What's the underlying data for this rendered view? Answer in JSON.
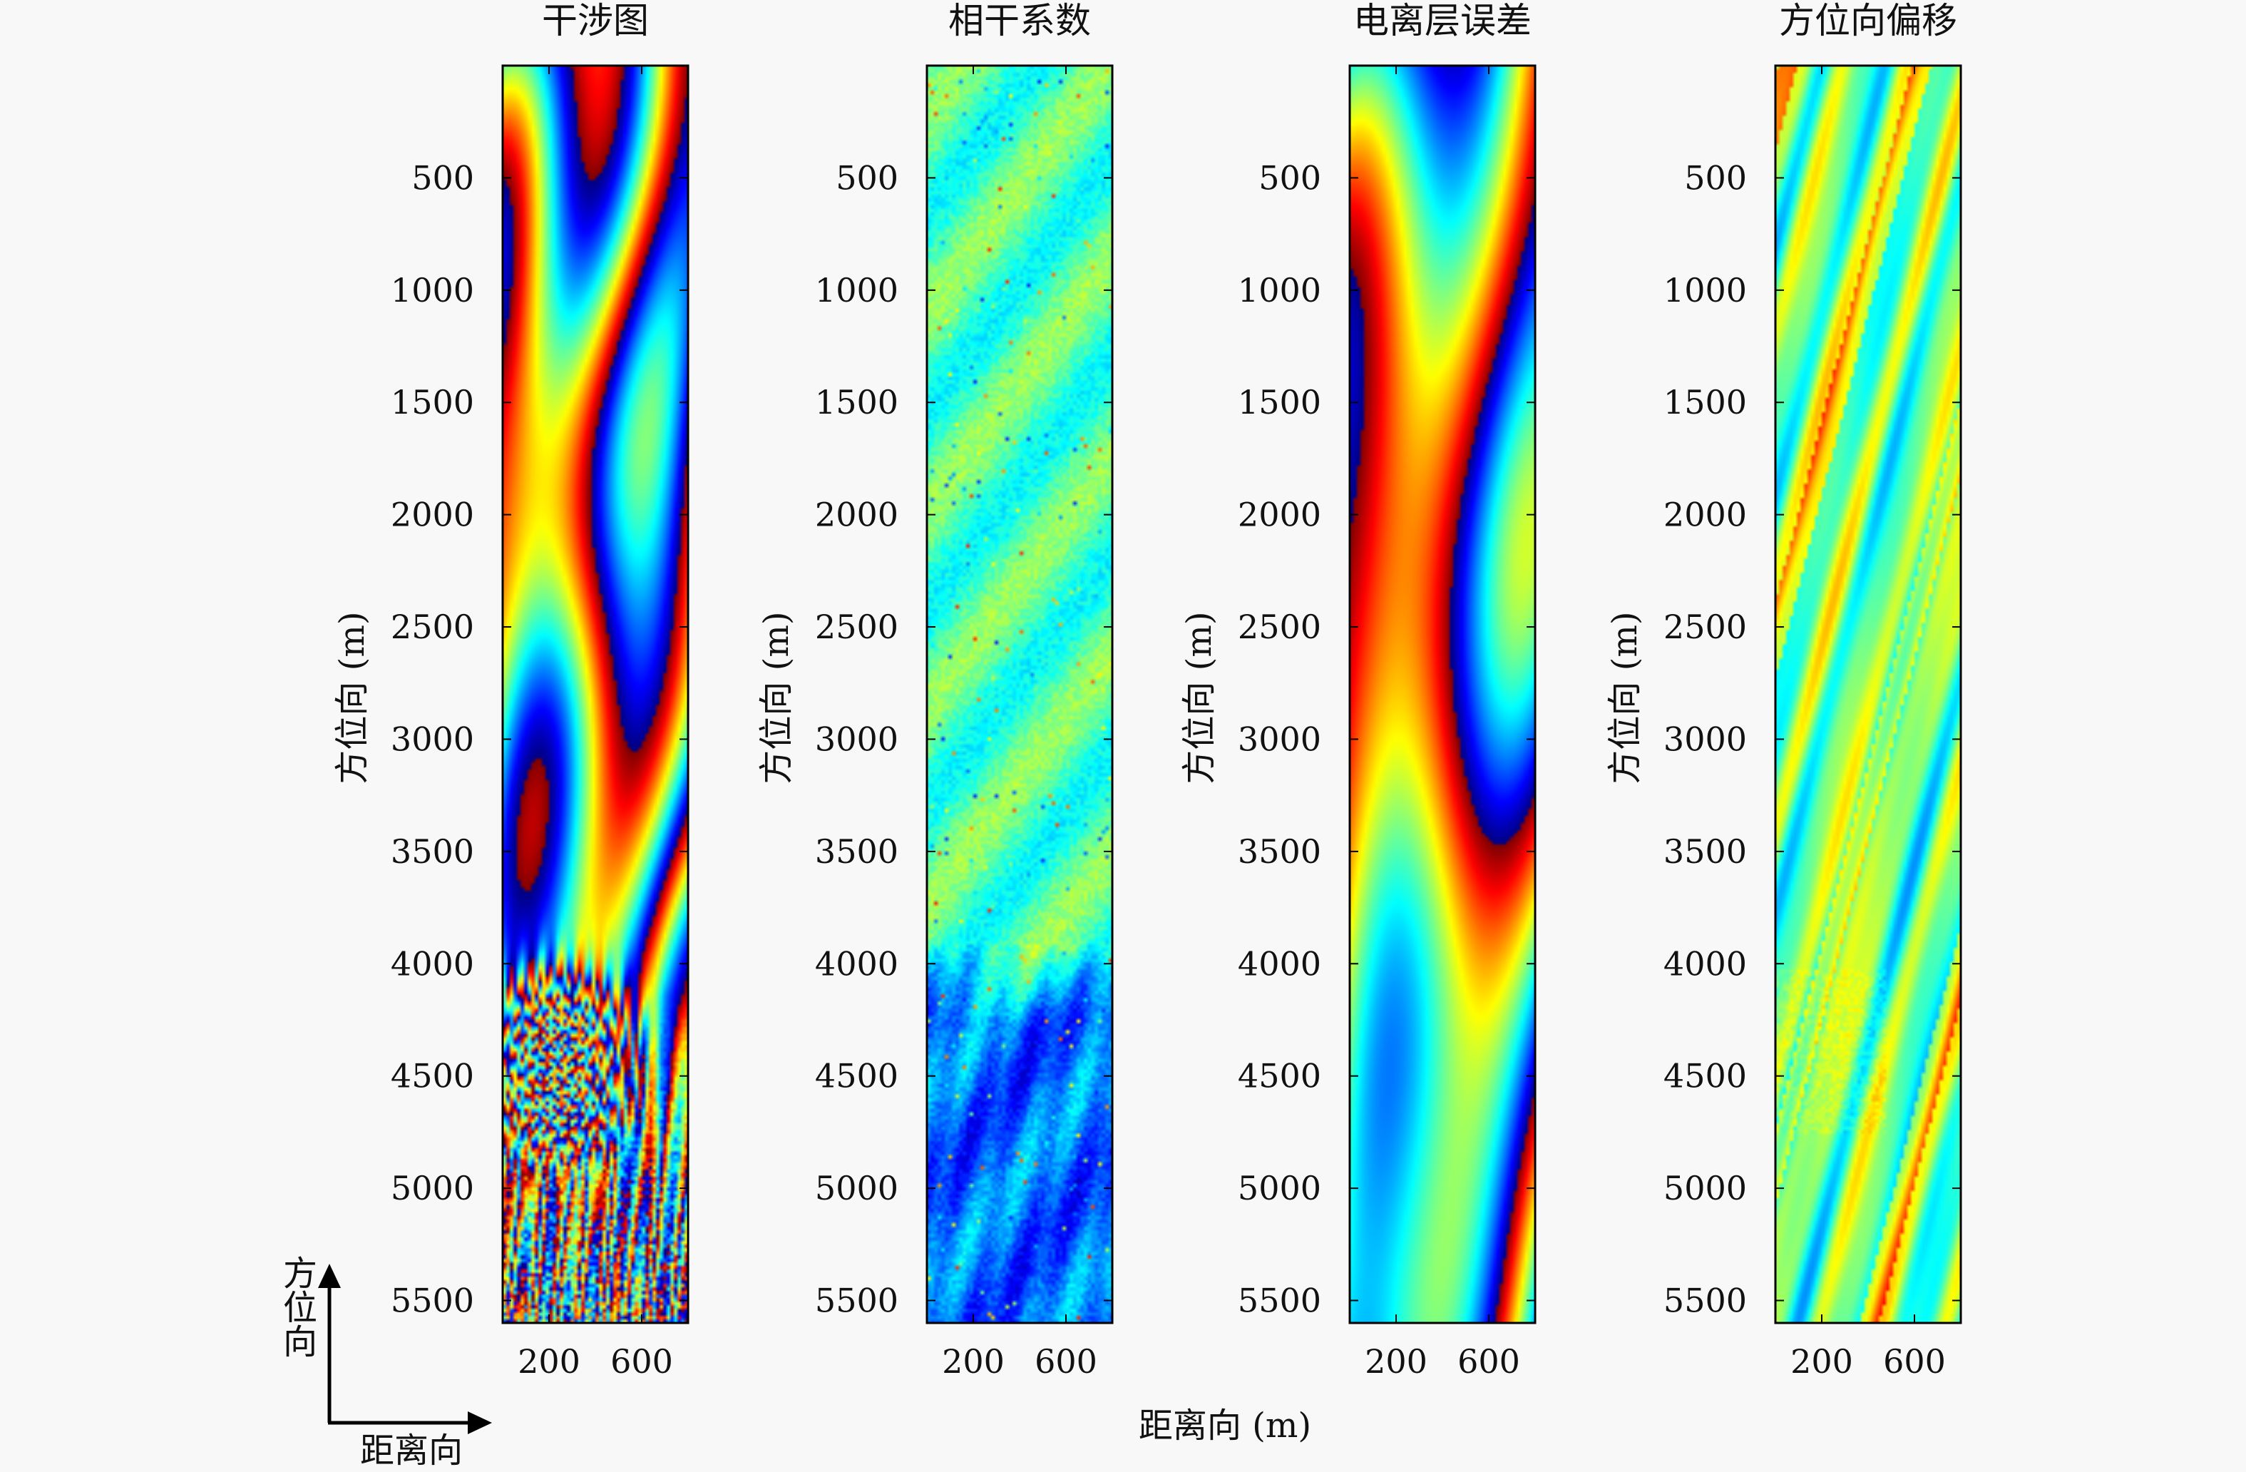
{
  "chart_data": [
    {
      "type": "heatmap",
      "title": "干涉图",
      "ylabel": "方位向 (m)",
      "xticks": [
        200,
        600
      ],
      "yticks": [
        500,
        1000,
        1500,
        2000,
        2500,
        3000,
        3500,
        4000,
        4500,
        5000,
        5500
      ],
      "xlim": [
        0,
        800
      ],
      "ylim": [
        0,
        5600
      ],
      "colormap": "jet",
      "pattern": "wrapped fringes, dense near azimuth 4200-4800 m"
    },
    {
      "type": "heatmap",
      "title": "相干系数",
      "ylabel": "方位向 (m)",
      "xticks": [
        200,
        600
      ],
      "yticks": [
        500,
        1000,
        1500,
        2000,
        2500,
        3000,
        3500,
        4000,
        4500,
        5000,
        5500
      ],
      "xlim": [
        0,
        800
      ],
      "ylim": [
        0,
        5600
      ],
      "colormap": "jet",
      "pattern": "mostly cyan-green, dark blue (low coherence) below azimuth 3900 m"
    },
    {
      "type": "heatmap",
      "title": "电离层误差",
      "ylabel": "方位向 (m)",
      "xticks": [
        200,
        600
      ],
      "yticks": [
        500,
        1000,
        1500,
        2000,
        2500,
        3000,
        3500,
        4000,
        4500,
        5000,
        5500
      ],
      "xlim": [
        0,
        800
      ],
      "ylim": [
        0,
        5600
      ],
      "colormap": "jet",
      "pattern": "smooth broad wrapped fringes"
    },
    {
      "type": "heatmap",
      "title": "方位向偏移",
      "ylabel": "方位向 (m)",
      "xticks": [
        200,
        600
      ],
      "yticks": [
        500,
        1000,
        1500,
        2000,
        2500,
        3000,
        3500,
        4000,
        4500,
        5000,
        5500
      ],
      "xlim": [
        0,
        800
      ],
      "ylim": [
        0,
        5600
      ],
      "colormap": "jet",
      "pattern": "diagonal streaks, cyan-yellow background"
    }
  ],
  "shared_xlabel": "距离向 (m)",
  "orientation": {
    "azimuth_label": "方位向",
    "range_label": "距离向"
  }
}
